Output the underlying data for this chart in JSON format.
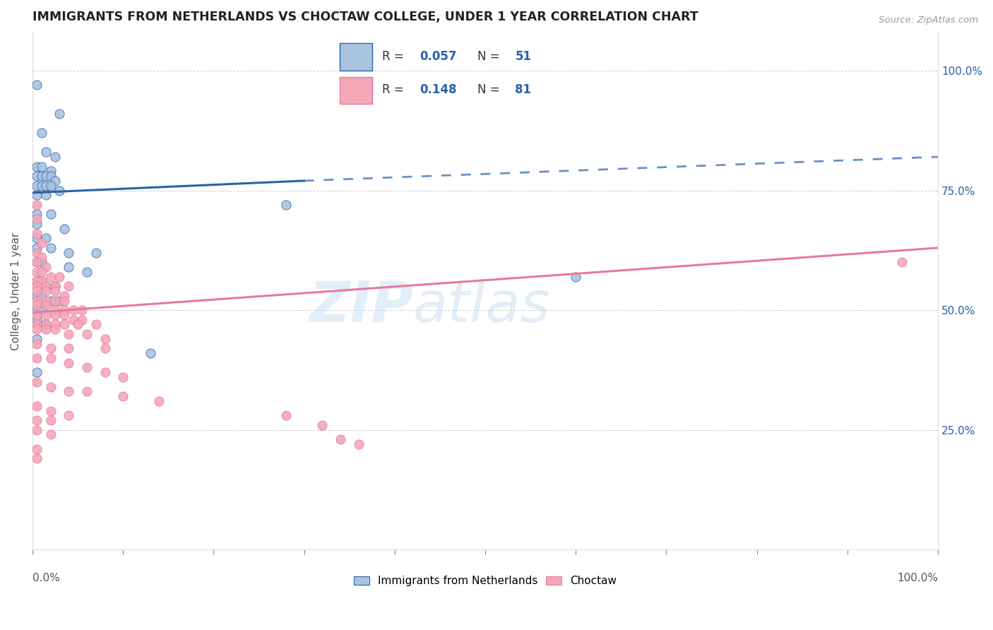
{
  "title": "IMMIGRANTS FROM NETHERLANDS VS CHOCTAW COLLEGE, UNDER 1 YEAR CORRELATION CHART",
  "source": "Source: ZipAtlas.com",
  "ylabel": "College, Under 1 year",
  "legend_labels": [
    "Immigrants from Netherlands",
    "Choctaw"
  ],
  "blue_R": "0.057",
  "blue_N": "51",
  "pink_R": "0.148",
  "pink_N": "81",
  "blue_color": "#aac4e0",
  "pink_color": "#f4a7b9",
  "blue_line_color": "#2962a8",
  "pink_line_color": "#e8799c",
  "blue_scatter": [
    [
      0.005,
      0.97
    ],
    [
      0.03,
      0.91
    ],
    [
      0.01,
      0.87
    ],
    [
      0.015,
      0.83
    ],
    [
      0.025,
      0.82
    ],
    [
      0.005,
      0.8
    ],
    [
      0.01,
      0.8
    ],
    [
      0.02,
      0.79
    ],
    [
      0.005,
      0.78
    ],
    [
      0.01,
      0.78
    ],
    [
      0.015,
      0.78
    ],
    [
      0.02,
      0.78
    ],
    [
      0.025,
      0.77
    ],
    [
      0.005,
      0.76
    ],
    [
      0.01,
      0.76
    ],
    [
      0.015,
      0.76
    ],
    [
      0.02,
      0.76
    ],
    [
      0.03,
      0.75
    ],
    [
      0.005,
      0.74
    ],
    [
      0.015,
      0.74
    ],
    [
      0.28,
      0.72
    ],
    [
      0.005,
      0.7
    ],
    [
      0.02,
      0.7
    ],
    [
      0.005,
      0.68
    ],
    [
      0.035,
      0.67
    ],
    [
      0.005,
      0.65
    ],
    [
      0.015,
      0.65
    ],
    [
      0.005,
      0.63
    ],
    [
      0.02,
      0.63
    ],
    [
      0.04,
      0.62
    ],
    [
      0.07,
      0.62
    ],
    [
      0.005,
      0.6
    ],
    [
      0.01,
      0.6
    ],
    [
      0.04,
      0.59
    ],
    [
      0.06,
      0.58
    ],
    [
      0.005,
      0.56
    ],
    [
      0.01,
      0.56
    ],
    [
      0.015,
      0.55
    ],
    [
      0.025,
      0.55
    ],
    [
      0.005,
      0.53
    ],
    [
      0.01,
      0.53
    ],
    [
      0.02,
      0.52
    ],
    [
      0.03,
      0.52
    ],
    [
      0.005,
      0.5
    ],
    [
      0.01,
      0.5
    ],
    [
      0.005,
      0.48
    ],
    [
      0.015,
      0.47
    ],
    [
      0.005,
      0.44
    ],
    [
      0.13,
      0.41
    ],
    [
      0.005,
      0.37
    ],
    [
      0.6,
      0.57
    ]
  ],
  "pink_scatter": [
    [
      0.005,
      0.72
    ],
    [
      0.005,
      0.69
    ],
    [
      0.005,
      0.66
    ],
    [
      0.01,
      0.64
    ],
    [
      0.005,
      0.62
    ],
    [
      0.01,
      0.61
    ],
    [
      0.005,
      0.6
    ],
    [
      0.015,
      0.59
    ],
    [
      0.005,
      0.58
    ],
    [
      0.01,
      0.58
    ],
    [
      0.02,
      0.57
    ],
    [
      0.03,
      0.57
    ],
    [
      0.005,
      0.56
    ],
    [
      0.01,
      0.56
    ],
    [
      0.005,
      0.55
    ],
    [
      0.015,
      0.55
    ],
    [
      0.025,
      0.55
    ],
    [
      0.04,
      0.55
    ],
    [
      0.005,
      0.54
    ],
    [
      0.015,
      0.54
    ],
    [
      0.025,
      0.54
    ],
    [
      0.035,
      0.53
    ],
    [
      0.005,
      0.52
    ],
    [
      0.015,
      0.52
    ],
    [
      0.025,
      0.52
    ],
    [
      0.035,
      0.52
    ],
    [
      0.005,
      0.51
    ],
    [
      0.015,
      0.51
    ],
    [
      0.025,
      0.5
    ],
    [
      0.035,
      0.5
    ],
    [
      0.045,
      0.5
    ],
    [
      0.055,
      0.5
    ],
    [
      0.005,
      0.49
    ],
    [
      0.015,
      0.49
    ],
    [
      0.025,
      0.49
    ],
    [
      0.035,
      0.49
    ],
    [
      0.045,
      0.48
    ],
    [
      0.055,
      0.48
    ],
    [
      0.005,
      0.47
    ],
    [
      0.015,
      0.47
    ],
    [
      0.025,
      0.47
    ],
    [
      0.035,
      0.47
    ],
    [
      0.05,
      0.47
    ],
    [
      0.07,
      0.47
    ],
    [
      0.005,
      0.46
    ],
    [
      0.015,
      0.46
    ],
    [
      0.025,
      0.46
    ],
    [
      0.04,
      0.45
    ],
    [
      0.06,
      0.45
    ],
    [
      0.08,
      0.44
    ],
    [
      0.005,
      0.43
    ],
    [
      0.02,
      0.42
    ],
    [
      0.04,
      0.42
    ],
    [
      0.08,
      0.42
    ],
    [
      0.005,
      0.4
    ],
    [
      0.02,
      0.4
    ],
    [
      0.04,
      0.39
    ],
    [
      0.06,
      0.38
    ],
    [
      0.08,
      0.37
    ],
    [
      0.1,
      0.36
    ],
    [
      0.005,
      0.35
    ],
    [
      0.02,
      0.34
    ],
    [
      0.04,
      0.33
    ],
    [
      0.06,
      0.33
    ],
    [
      0.1,
      0.32
    ],
    [
      0.14,
      0.31
    ],
    [
      0.005,
      0.3
    ],
    [
      0.02,
      0.29
    ],
    [
      0.04,
      0.28
    ],
    [
      0.28,
      0.28
    ],
    [
      0.005,
      0.27
    ],
    [
      0.02,
      0.27
    ],
    [
      0.32,
      0.26
    ],
    [
      0.005,
      0.25
    ],
    [
      0.02,
      0.24
    ],
    [
      0.34,
      0.23
    ],
    [
      0.005,
      0.21
    ],
    [
      0.36,
      0.22
    ],
    [
      0.005,
      0.19
    ],
    [
      0.96,
      0.6
    ]
  ],
  "blue_line_x0": 0.0,
  "blue_line_y0": 0.745,
  "blue_line_x1": 0.3,
  "blue_line_y1": 0.77,
  "blue_line_ext_x1": 1.0,
  "blue_line_ext_y1": 0.82,
  "pink_line_x0": 0.0,
  "pink_line_y0": 0.495,
  "pink_line_x1": 1.0,
  "pink_line_y1": 0.63,
  "xlim": [
    0.0,
    1.0
  ],
  "ylim": [
    0.0,
    1.08
  ],
  "yticks": [
    0.0,
    0.25,
    0.5,
    0.75,
    1.0
  ],
  "ytick_labels_right": [
    "",
    "25.0%",
    "50.0%",
    "75.0%",
    "100.0%"
  ]
}
